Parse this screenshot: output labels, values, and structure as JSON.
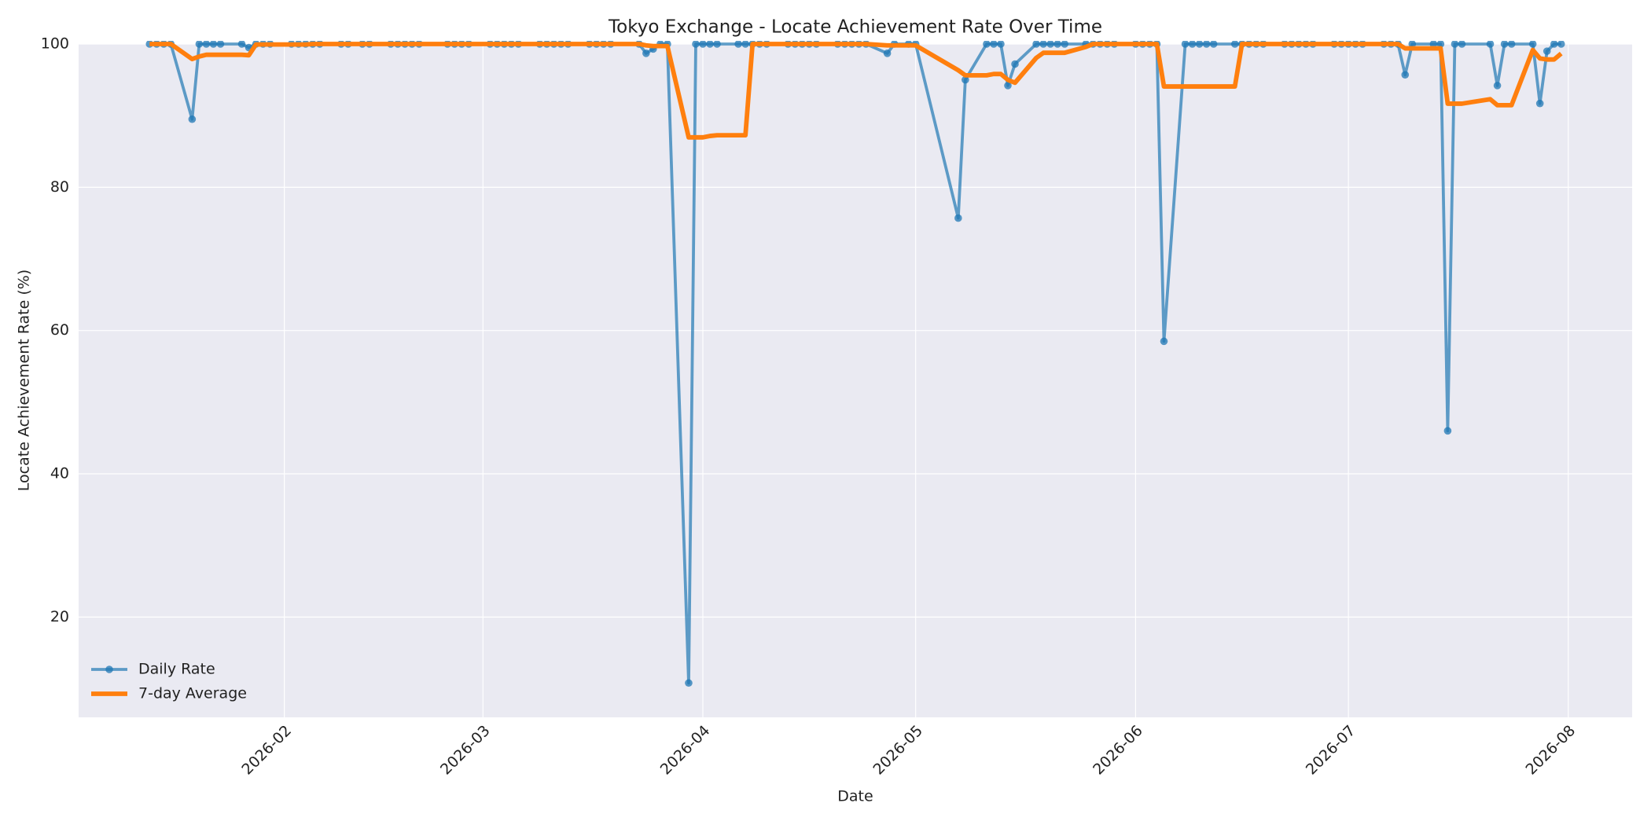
{
  "chart_data": {
    "type": "line",
    "title": "Tokyo Exchange - Locate Achievement Rate Over Time",
    "x_label": "Date",
    "y_label": "Locate Achievement Rate (%)",
    "x": [
      "2026-01-13",
      "2026-01-14",
      "2026-01-15",
      "2026-01-16",
      "2026-01-19",
      "2026-01-20",
      "2026-01-21",
      "2026-01-22",
      "2026-01-23",
      "2026-01-26",
      "2026-01-27",
      "2026-01-28",
      "2026-01-29",
      "2026-01-30",
      "2026-02-02",
      "2026-02-03",
      "2026-02-04",
      "2026-02-05",
      "2026-02-06",
      "2026-02-09",
      "2026-02-10",
      "2026-02-12",
      "2026-02-13",
      "2026-02-16",
      "2026-02-17",
      "2026-02-18",
      "2026-02-19",
      "2026-02-20",
      "2026-02-24",
      "2026-02-25",
      "2026-02-26",
      "2026-02-27",
      "2026-03-02",
      "2026-03-03",
      "2026-03-04",
      "2026-03-05",
      "2026-03-06",
      "2026-03-09",
      "2026-03-10",
      "2026-03-11",
      "2026-03-12",
      "2026-03-13",
      "2026-03-16",
      "2026-03-17",
      "2026-03-18",
      "2026-03-19",
      "2026-03-23",
      "2026-03-24",
      "2026-03-25",
      "2026-03-26",
      "2026-03-27",
      "2026-03-30",
      "2026-03-31",
      "2026-04-01",
      "2026-04-02",
      "2026-04-03",
      "2026-04-06",
      "2026-04-07",
      "2026-04-08",
      "2026-04-09",
      "2026-04-10",
      "2026-04-13",
      "2026-04-14",
      "2026-04-15",
      "2026-04-16",
      "2026-04-17",
      "2026-04-20",
      "2026-04-21",
      "2026-04-22",
      "2026-04-23",
      "2026-04-24",
      "2026-04-27",
      "2026-04-28",
      "2026-04-30",
      "2026-05-01",
      "2026-05-07",
      "2026-05-08",
      "2026-05-11",
      "2026-05-12",
      "2026-05-13",
      "2026-05-14",
      "2026-05-15",
      "2026-05-18",
      "2026-05-19",
      "2026-05-20",
      "2026-05-21",
      "2026-05-22",
      "2026-05-25",
      "2026-05-26",
      "2026-05-27",
      "2026-05-28",
      "2026-05-29",
      "2026-06-01",
      "2026-06-02",
      "2026-06-03",
      "2026-06-04",
      "2026-06-05",
      "2026-06-08",
      "2026-06-09",
      "2026-06-10",
      "2026-06-11",
      "2026-06-12",
      "2026-06-15",
      "2026-06-16",
      "2026-06-17",
      "2026-06-18",
      "2026-06-19",
      "2026-06-22",
      "2026-06-23",
      "2026-06-24",
      "2026-06-25",
      "2026-06-26",
      "2026-06-29",
      "2026-06-30",
      "2026-07-01",
      "2026-07-02",
      "2026-07-03",
      "2026-07-06",
      "2026-07-07",
      "2026-07-08",
      "2026-07-09",
      "2026-07-10",
      "2026-07-13",
      "2026-07-14",
      "2026-07-15",
      "2026-07-16",
      "2026-07-17",
      "2026-07-21",
      "2026-07-22",
      "2026-07-23",
      "2026-07-24",
      "2026-07-27",
      "2026-07-28",
      "2026-07-29",
      "2026-07-30",
      "2026-07-31"
    ],
    "series": [
      {
        "name": "Daily Rate",
        "color": "#1f77b4",
        "markers": true,
        "values": [
          100,
          100,
          100,
          100,
          89.5,
          100,
          100,
          100,
          100,
          100,
          99.5,
          100,
          100,
          100,
          100,
          100,
          100,
          100,
          100,
          100,
          100,
          100,
          100,
          100,
          100,
          100,
          100,
          100,
          100,
          100,
          100,
          100,
          100,
          100,
          100,
          100,
          100,
          100,
          100,
          100,
          100,
          100,
          100,
          100,
          100,
          100,
          100,
          98.7,
          99.3,
          100,
          100,
          10.8,
          100,
          100,
          100,
          100,
          100,
          100,
          100,
          100,
          100,
          100,
          100,
          100,
          100,
          100,
          100,
          100,
          100,
          100,
          100,
          98.7,
          100,
          100,
          100,
          75.7,
          95,
          100,
          100,
          100,
          94.2,
          97.2,
          100,
          100,
          100,
          100,
          100,
          100,
          100,
          100,
          100,
          100,
          100,
          100,
          100,
          100,
          58.5,
          100,
          100,
          100,
          100,
          100,
          100,
          100,
          100,
          100,
          100,
          100,
          100,
          100,
          100,
          100,
          100,
          100,
          100,
          100,
          100,
          100,
          100,
          100,
          95.7,
          100,
          100,
          100,
          46,
          100,
          100,
          100,
          94.2,
          100,
          100,
          100,
          91.7,
          99,
          100,
          100
        ]
      },
      {
        "name": "7-day Average",
        "color": "#ff7f0e",
        "markers": false,
        "values": [
          100,
          100,
          100,
          100,
          97.9,
          98.25,
          98.5,
          98.5,
          98.5,
          98.5,
          98.43,
          99.93,
          99.93,
          99.93,
          99.93,
          99.93,
          99.93,
          100,
          100,
          100,
          100,
          100,
          100,
          100,
          100,
          100,
          100,
          100,
          100,
          100,
          100,
          100,
          100,
          100,
          100,
          100,
          100,
          100,
          100,
          100,
          100,
          100,
          100,
          100,
          100,
          100,
          100,
          99.81,
          99.71,
          99.71,
          99.71,
          86.97,
          86.97,
          86.97,
          87.16,
          87.26,
          87.26,
          87.26,
          100,
          100,
          100,
          100,
          100,
          100,
          100,
          100,
          100,
          100,
          100,
          100,
          100,
          99.81,
          99.81,
          99.81,
          99.81,
          96.34,
          95.63,
          95.63,
          95.81,
          95.81,
          94.99,
          94.59,
          98.06,
          98.77,
          98.77,
          98.77,
          98.77,
          99.6,
          100,
          100,
          100,
          100,
          100,
          100,
          100,
          100,
          94.07,
          94.07,
          94.07,
          94.07,
          94.07,
          94.07,
          94.07,
          100,
          100,
          100,
          100,
          100,
          100,
          100,
          100,
          100,
          100,
          100,
          100,
          100,
          100,
          100,
          100,
          100,
          99.39,
          99.39,
          99.39,
          99.39,
          91.67,
          91.67,
          91.67,
          92.29,
          91.46,
          91.46,
          91.46,
          99.17,
          97.99,
          97.84,
          97.84,
          98.67
        ]
      }
    ],
    "xlim": [
      "2026-01-03",
      "2026-08-10"
    ],
    "xticks": [
      {
        "value": "2026-02-01",
        "label": "2026-02"
      },
      {
        "value": "2026-03-01",
        "label": "2026-03"
      },
      {
        "value": "2026-04-01",
        "label": "2026-04"
      },
      {
        "value": "2026-05-01",
        "label": "2026-05"
      },
      {
        "value": "2026-06-01",
        "label": "2026-06"
      },
      {
        "value": "2026-07-01",
        "label": "2026-07"
      },
      {
        "value": "2026-08-01",
        "label": "2026-08"
      }
    ],
    "ylim": [
      6,
      100
    ],
    "yticks": [
      20,
      40,
      60,
      80,
      100
    ],
    "grid": true,
    "legend": "lower left"
  }
}
